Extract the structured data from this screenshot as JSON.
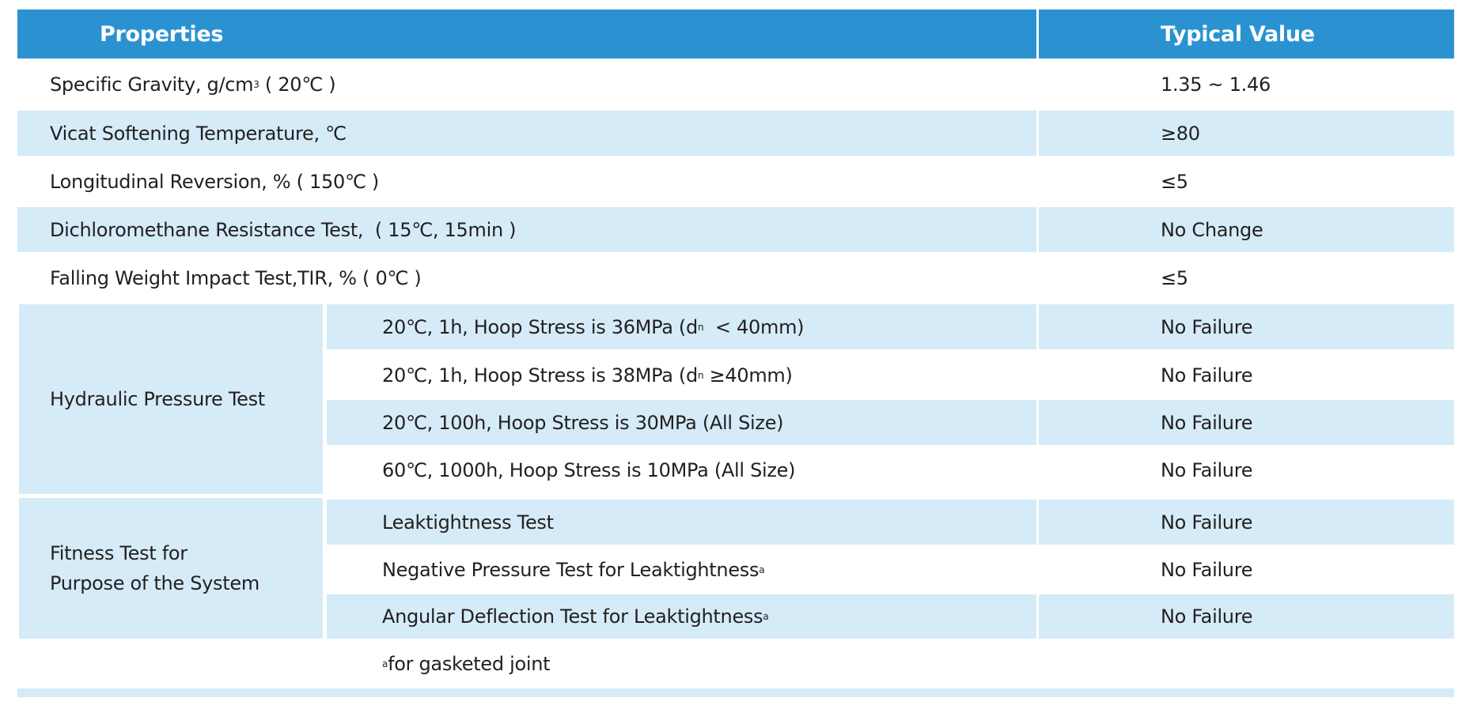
{
  "header": {
    "properties": "Properties",
    "typical_value": "Typical Value"
  },
  "rows": [
    {
      "pre": "Specific Gravity, g/cm",
      "sup": "3",
      "post": " ( 20℃ )",
      "value": "1.35 ~ 1.46"
    },
    {
      "pre": "Vicat Softening Temperature, ℃",
      "value": "≥80"
    },
    {
      "pre": "Longitudinal Reversion, % ( 150℃ )",
      "value": "≤5"
    },
    {
      "pre": "Dichloromethane Resistance Test,  ( 15℃, 15min )",
      "value": "No Change"
    },
    {
      "pre": "Falling Weight Impact Test,TIR, % ( 0℃ )",
      "value": "≤5"
    }
  ],
  "hydraulic": {
    "label": "Hydraulic Pressure Test",
    "items": [
      {
        "pre": "20℃, 1h, Hoop Stress is 36MPa (d",
        "sub": "n",
        "post": "  < 40mm)",
        "value": "No Failure"
      },
      {
        "pre": "20℃, 1h, Hoop Stress is 38MPa (d",
        "sub": "n",
        "post": " ≥40mm)",
        "value": "No Failure"
      },
      {
        "pre": "20℃, 100h, Hoop Stress is 30MPa (All Size)",
        "value": "No Failure"
      },
      {
        "pre": "60℃, 1000h, Hoop Stress is 10MPa (All Size)",
        "value": "No Failure"
      }
    ]
  },
  "fitness": {
    "label_line1": "Fitness Test for",
    "label_line2": "Purpose of the System",
    "items": [
      {
        "pre": "Leaktightness Test",
        "value": "No Failure"
      },
      {
        "pre": "Negative Pressure Test for Leaktightness",
        "sup": "a",
        "value": "No Failure"
      },
      {
        "pre": "Angular Deflection Test for Leaktightness",
        "sup": "a",
        "value": "No Failure"
      }
    ]
  },
  "footnote": {
    "sup": "a",
    "text": "for gasketed joint"
  },
  "colors": {
    "header": "#2b92d2",
    "stripe": "#d5ebf8"
  }
}
